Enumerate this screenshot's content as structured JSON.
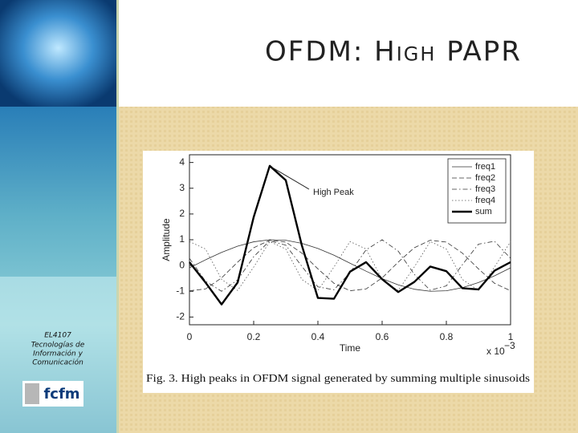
{
  "slide": {
    "title": "OFDM: High PAPR",
    "sidebar": {
      "course": "EL4107",
      "lines": [
        "Tecnologías de",
        "Información y",
        "Comunicación"
      ],
      "logo": "fcfm"
    }
  },
  "chart_data": {
    "type": "line",
    "x_label": "Time",
    "y_label": "Amplitude",
    "x_multiplier": "x 10",
    "x_exponent": "−3",
    "caption": "Fig. 3. High peaks in OFDM signal generated by summing multiple sinusoids",
    "annotation": "High Peak",
    "x": [
      0,
      0.05,
      0.1,
      0.15,
      0.2,
      0.25,
      0.3,
      0.35,
      0.4,
      0.45,
      0.5,
      0.55,
      0.6,
      0.65,
      0.7,
      0.75,
      0.8,
      0.85,
      0.9,
      0.95,
      1
    ],
    "series": [
      {
        "name": "freq1",
        "color": "#333333",
        "linestyle": "solid",
        "linewidth": 0.8,
        "values": [
          -0.09,
          0.22,
          0.51,
          0.75,
          0.92,
          1.0,
          0.98,
          0.86,
          0.66,
          0.4,
          0.09,
          -0.22,
          -0.51,
          -0.75,
          -0.92,
          -1.0,
          -0.98,
          -0.86,
          -0.66,
          -0.4,
          -0.09
        ]
      },
      {
        "name": "freq2",
        "color": "#333333",
        "linestyle": "dashed",
        "linewidth": 0.8,
        "values": [
          -0.98,
          -0.91,
          -0.48,
          0.13,
          0.69,
          0.98,
          0.91,
          0.48,
          -0.13,
          -0.69,
          -0.98,
          -0.91,
          -0.48,
          0.13,
          0.69,
          0.98,
          0.91,
          0.48,
          -0.13,
          -0.69,
          -0.98
        ]
      },
      {
        "name": "freq3",
        "color": "#333333",
        "linestyle": "dashdot",
        "linewidth": 0.8,
        "values": [
          0.28,
          -0.61,
          -1.0,
          -0.56,
          0.34,
          0.96,
          0.79,
          -0.03,
          -0.83,
          -0.94,
          -0.28,
          0.61,
          1.0,
          0.56,
          -0.34,
          -0.96,
          -0.79,
          0.03,
          0.83,
          0.94,
          0.28
        ]
      },
      {
        "name": "freq4",
        "color": "#555555",
        "linestyle": "dotted",
        "linewidth": 0.8,
        "values": [
          0.93,
          0.64,
          -0.54,
          -0.97,
          -0.06,
          0.93,
          0.64,
          -0.54,
          -0.97,
          -0.06,
          0.93,
          0.64,
          -0.54,
          -0.97,
          -0.06,
          0.93,
          0.64,
          -0.54,
          -0.97,
          -0.06,
          0.93
        ]
      },
      {
        "name": "sum",
        "color": "#000000",
        "linestyle": "solid",
        "linewidth": 2.4,
        "values": [
          0.13,
          -0.66,
          -1.51,
          -0.66,
          1.88,
          3.87,
          3.31,
          0.78,
          -1.26,
          -1.29,
          -0.24,
          0.13,
          -0.53,
          -1.03,
          -0.64,
          -0.04,
          -0.22,
          -0.88,
          -0.93,
          -0.2,
          0.13
        ]
      }
    ],
    "xlim": [
      0,
      1
    ],
    "ylim": [
      -2.3,
      4.3
    ],
    "xticks": [
      0,
      0.2,
      0.4,
      0.6,
      0.8,
      1
    ],
    "yticks": [
      -2,
      -1,
      0,
      1,
      2,
      3,
      4
    ],
    "grid": false,
    "legend": "upper right"
  }
}
